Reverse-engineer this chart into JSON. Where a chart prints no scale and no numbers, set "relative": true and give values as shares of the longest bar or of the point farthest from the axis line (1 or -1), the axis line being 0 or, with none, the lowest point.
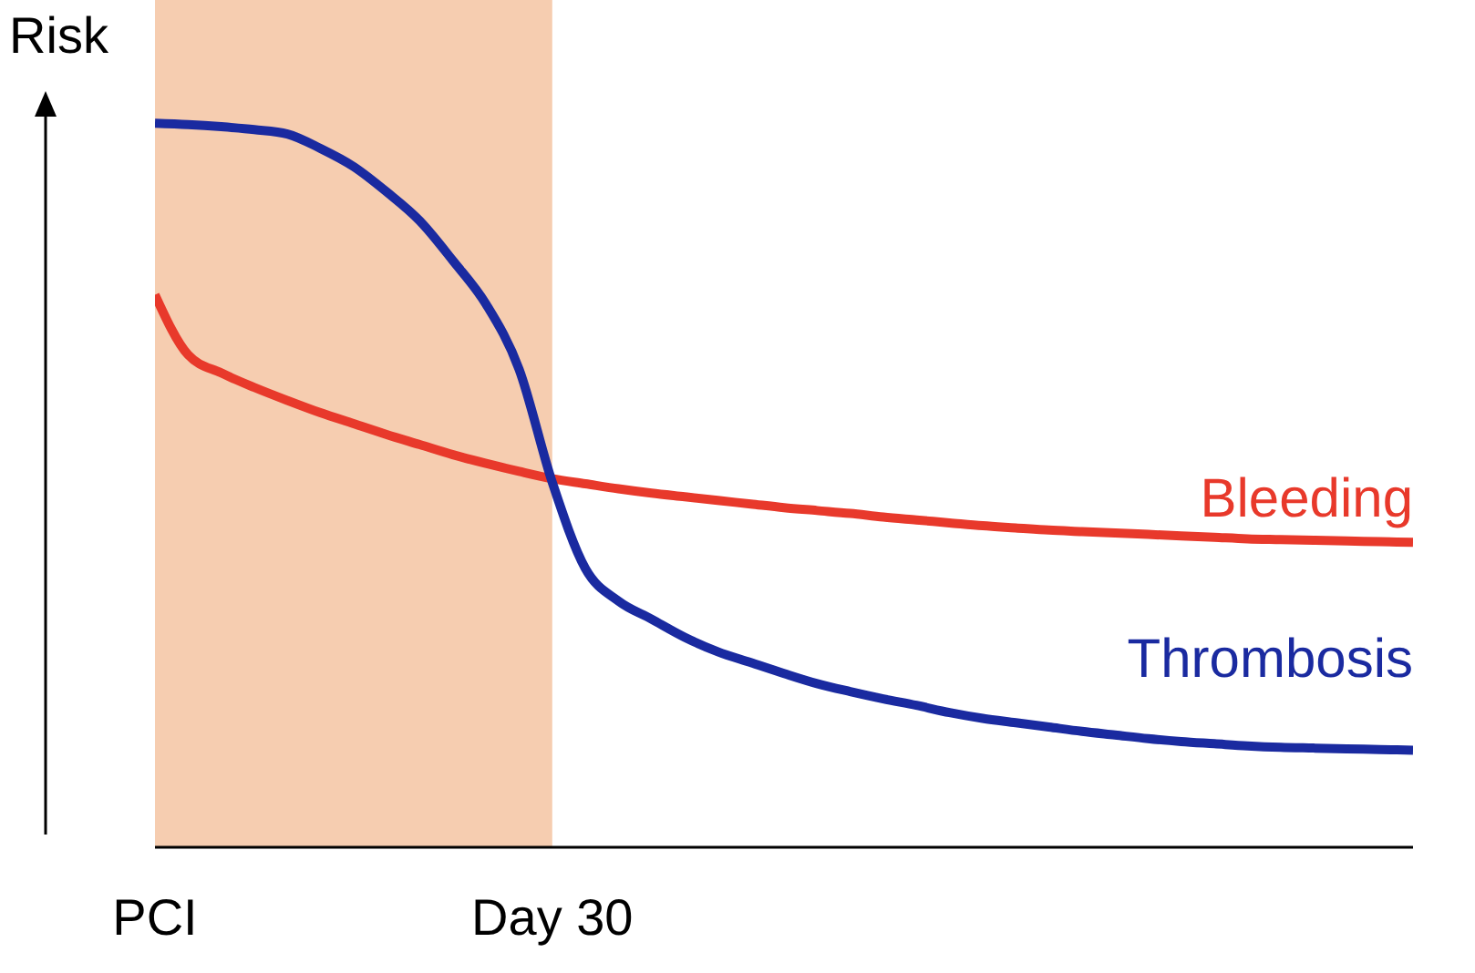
{
  "chart_data": {
    "type": "line",
    "relative": true,
    "ylabel": "Risk",
    "categories": [
      "PCI",
      null,
      null,
      null,
      null,
      null,
      null,
      null,
      null,
      null,
      null,
      null,
      "Day 30",
      null,
      null,
      null,
      null,
      null,
      null,
      null,
      null,
      null,
      null,
      null,
      null,
      null,
      null,
      null,
      null,
      null,
      null,
      null,
      null,
      null,
      null,
      null,
      null,
      null,
      null
    ],
    "bands": [
      {
        "axis": "x",
        "from": "PCI",
        "to": "Day 30",
        "color": "#f6cdb0"
      }
    ],
    "legend": false,
    "marker": "none",
    "line_style": "solid",
    "grid": false,
    "series": [
      {
        "name": "Bleeding",
        "color": "#e8392b",
        "values": [
          0.763,
          0.68,
          0.655,
          0.635,
          0.617,
          0.6,
          0.585,
          0.57,
          0.556,
          0.542,
          0.53,
          0.519,
          0.509,
          0.502,
          0.495,
          0.489,
          0.484,
          0.479,
          0.474,
          0.469,
          0.465,
          0.461,
          0.456,
          0.452,
          0.448,
          0.444,
          0.441,
          0.438,
          0.436,
          0.434,
          0.432,
          0.43,
          0.428,
          0.426,
          0.425,
          0.424,
          0.423,
          0.422,
          0.421
        ]
      },
      {
        "name": "Thrombosis",
        "color": "#1a2aa0",
        "values": [
          1,
          0.998,
          0.995,
          0.991,
          0.985,
          0.965,
          0.94,
          0.905,
          0.865,
          0.81,
          0.75,
          0.66,
          0.504,
          0.385,
          0.34,
          0.315,
          0.29,
          0.27,
          0.255,
          0.24,
          0.226,
          0.215,
          0.205,
          0.196,
          0.186,
          0.178,
          0.172,
          0.166,
          0.16,
          0.155,
          0.15,
          0.146,
          0.143,
          0.14,
          0.138,
          0.137,
          0.136,
          0.135,
          0.134
        ]
      }
    ]
  }
}
